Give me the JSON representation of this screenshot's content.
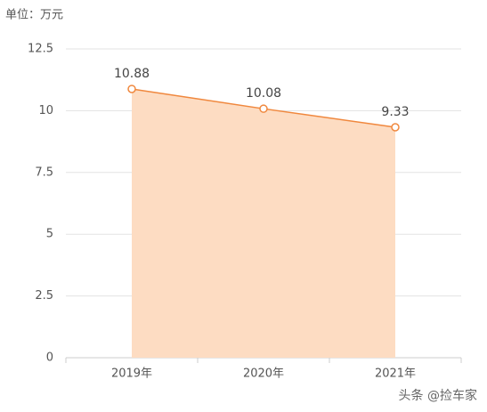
{
  "chart_data": {
    "type": "line",
    "title": "单位：万元",
    "categories": [
      "2019年",
      "2020年",
      "2021年"
    ],
    "values": [
      10.88,
      10.08,
      9.33
    ],
    "color": "#f0883e",
    "area_color": "#fddcc2",
    "ylim": [
      0,
      12.5
    ],
    "yticks": [
      0,
      2.5,
      5,
      7.5,
      10,
      12.5
    ],
    "grid": true,
    "data_labels": true,
    "area": true,
    "watermark": "头条 @捡车家"
  }
}
